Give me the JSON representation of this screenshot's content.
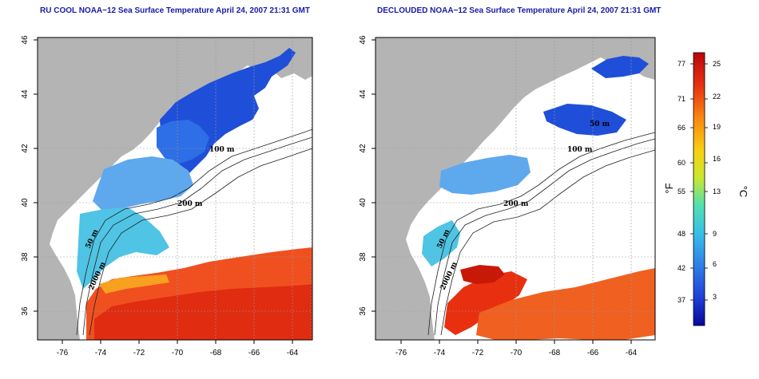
{
  "panels": [
    {
      "id": "left",
      "title": "RU COOL NOAA−12 Sea Surface Temperature April 24, 2007 21:31 GMT",
      "depth_labels": [
        "100 m",
        "200 m",
        "50 m",
        "2000 m"
      ]
    },
    {
      "id": "right",
      "title": "DECLOUDED NOAA−12 Sea Surface Temperature April 24, 2007 21:31 GMT",
      "depth_labels": [
        "50 m",
        "100 m",
        "200 m",
        "50 m",
        "2000 m"
      ]
    }
  ],
  "axes": {
    "lon_ticks": [
      "-76",
      "-74",
      "-72",
      "-70",
      "-68",
      "-66",
      "-64"
    ],
    "lat_ticks": [
      "46",
      "44",
      "42",
      "40",
      "38",
      "36"
    ]
  },
  "colorbar": {
    "fahrenheit_ticks": [
      "77",
      "71",
      "66",
      "60",
      "55",
      "48",
      "42",
      "37"
    ],
    "celsius_ticks": [
      "25",
      "22",
      "19",
      "16",
      "13",
      "9",
      "6",
      "3"
    ],
    "fahrenheit_unit": "°F",
    "celsius_unit": "°C",
    "colors": [
      "#08089a",
      "#1f3fd8",
      "#2f7fe8",
      "#36c0e8",
      "#52e0b0",
      "#c8e830",
      "#f8d010",
      "#f88810",
      "#e83010",
      "#b80808"
    ]
  },
  "colors": {
    "land": "#b4b4b4",
    "cloud": "#ffffff",
    "title": "#1a1aa8",
    "grid": "#9a9a9a"
  }
}
